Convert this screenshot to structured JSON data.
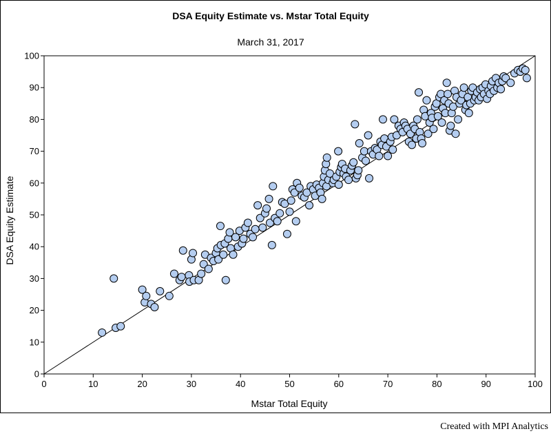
{
  "chart_data": {
    "type": "scatter",
    "title": "DSA Equity Estimate vs. Mstar Total Equity",
    "subtitle": "March 31, 2017",
    "xlabel": "Mstar Total Equity",
    "ylabel": "DSA Equity Estimate",
    "xlim": [
      0,
      100
    ],
    "ylim": [
      0,
      100
    ],
    "xticks": [
      "0",
      "10",
      "20",
      "30",
      "40",
      "50",
      "60",
      "70",
      "80",
      "90",
      "100"
    ],
    "yticks": [
      "0",
      "10",
      "20",
      "30",
      "40",
      "50",
      "60",
      "70",
      "80",
      "90",
      "100"
    ],
    "grid": false,
    "reference_line": [
      [
        0,
        0
      ],
      [
        100,
        100
      ]
    ],
    "marker_color": "#b4cdf0",
    "marker_edge": "#000000",
    "points": [
      [
        11.8,
        13
      ],
      [
        14.2,
        30
      ],
      [
        14.6,
        14.5
      ],
      [
        15.6,
        15
      ],
      [
        20,
        26.5
      ],
      [
        20.5,
        22.5
      ],
      [
        20.8,
        24.5
      ],
      [
        21.8,
        22
      ],
      [
        22.5,
        21
      ],
      [
        23.6,
        26
      ],
      [
        25.5,
        24.5
      ],
      [
        26.5,
        31.5
      ],
      [
        27.6,
        29.5
      ],
      [
        28,
        30.5
      ],
      [
        28.3,
        38.8
      ],
      [
        29.5,
        31
      ],
      [
        29.6,
        29
      ],
      [
        30,
        36
      ],
      [
        30.3,
        38
      ],
      [
        30.5,
        29.5
      ],
      [
        31.5,
        29.5
      ],
      [
        32,
        31.5
      ],
      [
        32.5,
        34.5
      ],
      [
        32.8,
        37.5
      ],
      [
        33.5,
        33
      ],
      [
        34,
        36.5
      ],
      [
        34.5,
        35.5
      ],
      [
        35,
        38
      ],
      [
        35.3,
        39.5
      ],
      [
        35.5,
        36
      ],
      [
        35.9,
        46.5
      ],
      [
        36,
        40.5
      ],
      [
        36.5,
        37.5
      ],
      [
        36.8,
        41
      ],
      [
        37,
        29.5
      ],
      [
        37.5,
        42.5
      ],
      [
        37.8,
        44.5
      ],
      [
        38,
        39.5
      ],
      [
        38.5,
        37.5
      ],
      [
        39,
        43
      ],
      [
        39.5,
        40
      ],
      [
        39.8,
        45
      ],
      [
        40.3,
        41
      ],
      [
        40.6,
        42.5
      ],
      [
        41,
        46
      ],
      [
        41.5,
        47.5
      ],
      [
        42,
        44
      ],
      [
        42.5,
        43
      ],
      [
        43,
        45.5
      ],
      [
        43.5,
        53
      ],
      [
        44,
        49
      ],
      [
        44.5,
        46
      ],
      [
        45,
        50.5
      ],
      [
        45.3,
        52
      ],
      [
        45.8,
        55
      ],
      [
        46,
        47.5
      ],
      [
        46.4,
        40.5
      ],
      [
        46.6,
        59
      ],
      [
        47,
        49
      ],
      [
        47.5,
        48
      ],
      [
        48,
        50.5
      ],
      [
        48.5,
        54
      ],
      [
        49,
        53.5
      ],
      [
        49.5,
        44
      ],
      [
        50,
        51
      ],
      [
        50.3,
        54.5
      ],
      [
        50.6,
        58
      ],
      [
        51,
        57
      ],
      [
        51.3,
        48
      ],
      [
        51.5,
        60
      ],
      [
        52,
        58.5
      ],
      [
        52.5,
        56
      ],
      [
        53,
        55.5
      ],
      [
        53.5,
        57
      ],
      [
        54,
        53
      ],
      [
        54.3,
        59
      ],
      [
        54.8,
        58
      ],
      [
        55.2,
        56
      ],
      [
        55.5,
        59.5
      ],
      [
        56,
        58.5
      ],
      [
        56.3,
        57
      ],
      [
        56.6,
        55
      ],
      [
        56.8,
        60
      ],
      [
        57,
        62
      ],
      [
        57.2,
        64
      ],
      [
        57.4,
        66
      ],
      [
        57.6,
        68
      ],
      [
        57.5,
        59
      ],
      [
        57.9,
        61
      ],
      [
        58.2,
        63
      ],
      [
        58.8,
        60
      ],
      [
        59,
        61
      ],
      [
        59.5,
        62
      ],
      [
        59.9,
        70
      ],
      [
        60,
        59.5
      ],
      [
        60.2,
        63.5
      ],
      [
        60.5,
        65
      ],
      [
        60.7,
        66
      ],
      [
        61,
        63
      ],
      [
        61.3,
        64.5
      ],
      [
        61.5,
        62
      ],
      [
        62,
        61
      ],
      [
        62.4,
        64
      ],
      [
        62.7,
        65.5
      ],
      [
        63,
        66.5
      ],
      [
        63.3,
        78.5
      ],
      [
        63.5,
        61.5
      ],
      [
        63.8,
        62.5
      ],
      [
        64,
        64
      ],
      [
        64.2,
        72.5
      ],
      [
        64.8,
        68
      ],
      [
        65.2,
        70
      ],
      [
        65.5,
        67
      ],
      [
        66,
        75
      ],
      [
        66.2,
        61.5
      ],
      [
        66.6,
        70
      ],
      [
        67,
        69
      ],
      [
        67.4,
        71
      ],
      [
        67.8,
        70.5
      ],
      [
        68.2,
        68.5
      ],
      [
        68.5,
        73
      ],
      [
        68.8,
        72
      ],
      [
        69,
        80
      ],
      [
        69.3,
        74
      ],
      [
        69.7,
        71.5
      ],
      [
        70,
        68.5
      ],
      [
        70.5,
        73
      ],
      [
        70.8,
        74.5
      ],
      [
        71,
        70.5
      ],
      [
        71.3,
        80
      ],
      [
        71.8,
        75
      ],
      [
        72.2,
        78
      ],
      [
        72.6,
        77
      ],
      [
        73,
        76
      ],
      [
        73.3,
        79
      ],
      [
        73.6,
        78
      ],
      [
        74,
        77
      ],
      [
        74.3,
        73
      ],
      [
        74.6,
        75.5
      ],
      [
        74.9,
        72
      ],
      [
        75.2,
        78
      ],
      [
        75.5,
        77
      ],
      [
        75.8,
        74
      ],
      [
        76,
        80
      ],
      [
        76.3,
        88.5
      ],
      [
        76.5,
        76
      ],
      [
        76.8,
        74
      ],
      [
        77,
        72.5
      ],
      [
        77.3,
        83
      ],
      [
        77.6,
        81
      ],
      [
        77.9,
        86
      ],
      [
        78.2,
        75.5
      ],
      [
        78.5,
        79
      ],
      [
        78.8,
        82
      ],
      [
        79,
        80.5
      ],
      [
        79.3,
        77
      ],
      [
        79.6,
        84
      ],
      [
        79.9,
        85
      ],
      [
        80.2,
        81
      ],
      [
        80.5,
        87
      ],
      [
        80.8,
        88
      ],
      [
        81,
        79
      ],
      [
        81.2,
        83.5
      ],
      [
        81.5,
        86
      ],
      [
        81.7,
        82
      ],
      [
        82,
        91.5
      ],
      [
        82.2,
        88
      ],
      [
        82.4,
        85
      ],
      [
        82.6,
        76.5
      ],
      [
        82.8,
        78
      ],
      [
        83,
        82
      ],
      [
        83.3,
        84
      ],
      [
        83.6,
        89
      ],
      [
        83.8,
        75.5
      ],
      [
        84,
        87
      ],
      [
        84.3,
        80
      ],
      [
        84.6,
        85
      ],
      [
        84.9,
        86
      ],
      [
        85.2,
        88
      ],
      [
        85.5,
        90
      ],
      [
        85.8,
        83
      ],
      [
        86,
        84.5
      ],
      [
        86.3,
        87
      ],
      [
        86.5,
        82
      ],
      [
        86.8,
        85
      ],
      [
        87,
        89
      ],
      [
        87.3,
        90
      ],
      [
        87.6,
        86
      ],
      [
        87.9,
        87
      ],
      [
        88.2,
        88.5
      ],
      [
        88.5,
        86
      ],
      [
        88.8,
        89.5
      ],
      [
        89,
        87
      ],
      [
        89.3,
        90
      ],
      [
        89.6,
        88
      ],
      [
        89.9,
        91
      ],
      [
        90.2,
        86.5
      ],
      [
        90.5,
        89
      ],
      [
        90.8,
        88
      ],
      [
        91,
        90.5
      ],
      [
        91.3,
        92
      ],
      [
        91.6,
        89
      ],
      [
        92,
        93
      ],
      [
        92.3,
        90
      ],
      [
        92.6,
        91.5
      ],
      [
        93,
        89.5
      ],
      [
        93.3,
        92
      ],
      [
        93.6,
        93.5
      ],
      [
        94,
        93
      ],
      [
        95,
        91.5
      ],
      [
        95.8,
        94.5
      ],
      [
        96.5,
        95.5
      ],
      [
        97,
        95
      ],
      [
        97.5,
        96
      ],
      [
        98,
        95.5
      ],
      [
        98.3,
        93
      ]
    ]
  }
}
